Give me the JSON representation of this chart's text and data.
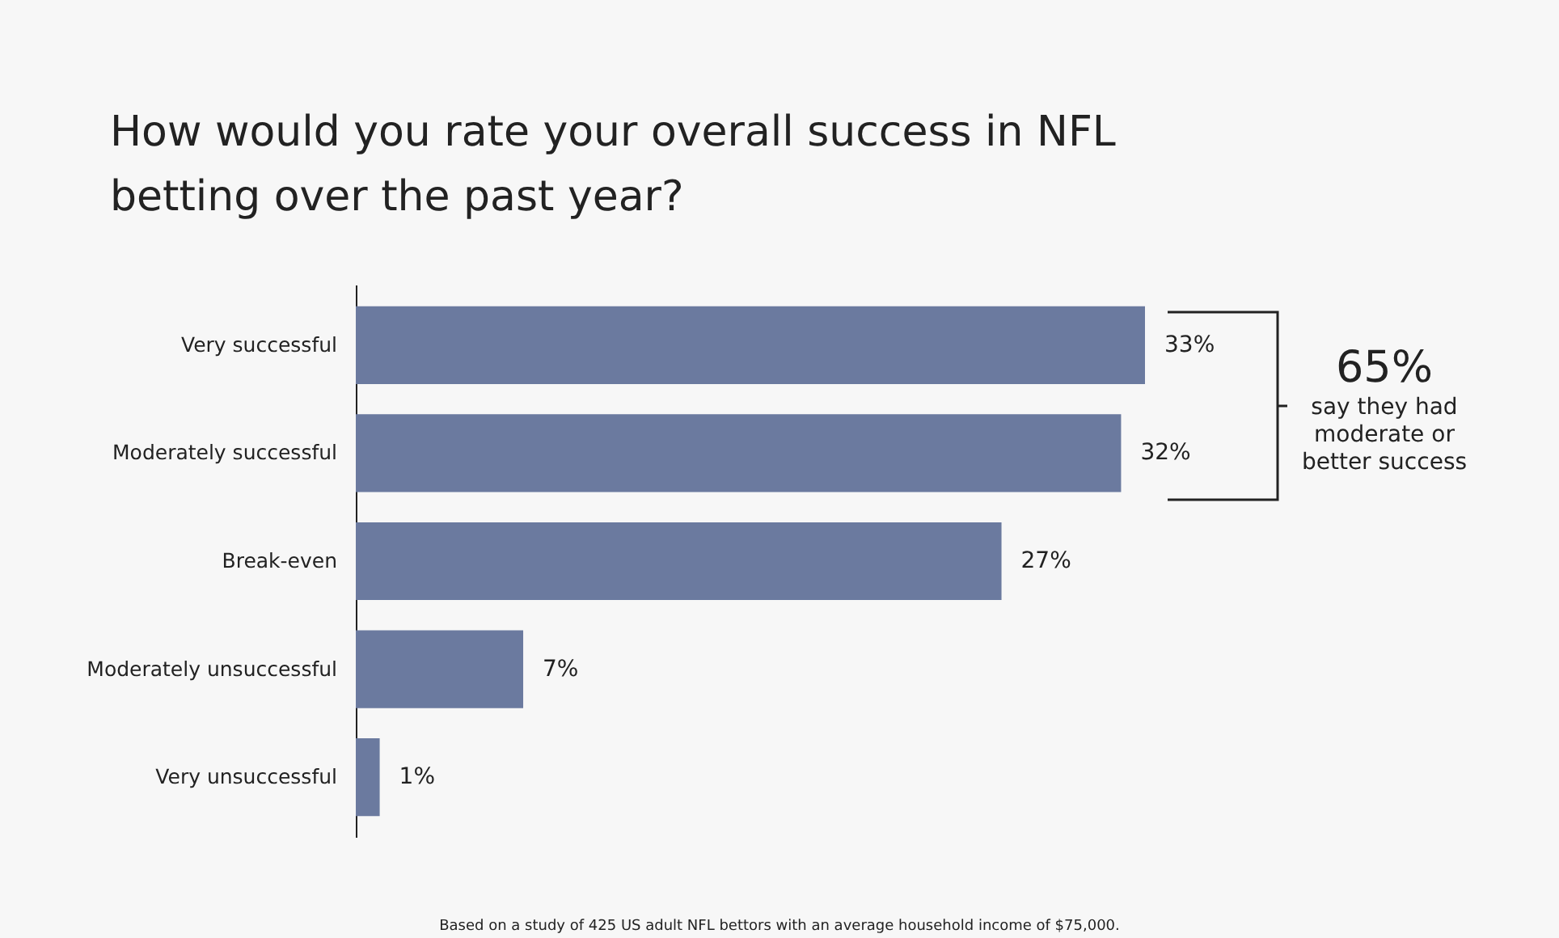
{
  "chart_data": {
    "type": "bar",
    "orientation": "horizontal",
    "title": "How would you rate your overall success in NFL betting over the past year?",
    "categories": [
      "Very successful",
      "Moderately successful",
      "Break-even",
      "Moderately unsuccessful",
      "Very unsuccessful"
    ],
    "values": [
      33,
      32,
      27,
      7,
      1
    ],
    "value_labels": [
      "33%",
      "32%",
      "27%",
      "7%",
      "1%"
    ],
    "color": "#6b7a9f",
    "annotations": [
      "65% say they had moderate or better success",
      "Based on a study of 425 US adult NFL bettors with an average household income of $75,000."
    ]
  }
}
